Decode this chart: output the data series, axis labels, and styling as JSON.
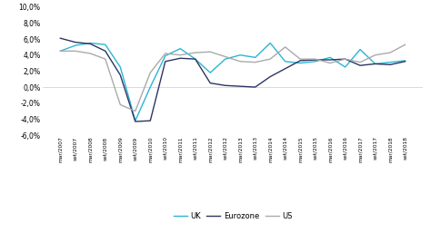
{
  "x_labels": [
    "mar/2007",
    "set/2007",
    "mar/2008",
    "set/2008",
    "mar/2009",
    "set/2009",
    "mar/2010",
    "set/2010",
    "mar/2011",
    "set/2011",
    "mar/2012",
    "set/2012",
    "mar/2013",
    "set/2013",
    "mar/2014",
    "set/2014",
    "mar/2015",
    "set/2015",
    "mar/2016",
    "set/2016",
    "mar/2017",
    "set/2017",
    "mar/2018",
    "set/2018"
  ],
  "uk": [
    4.5,
    5.2,
    5.5,
    5.3,
    2.5,
    -4.2,
    0.0,
    3.9,
    4.8,
    3.5,
    1.8,
    3.5,
    4.0,
    3.7,
    5.5,
    3.2,
    3.0,
    3.2,
    3.7,
    2.5,
    4.7,
    2.9,
    3.1,
    3.3
  ],
  "eurozone": [
    6.1,
    5.6,
    5.4,
    4.5,
    1.5,
    -4.3,
    -4.2,
    3.2,
    3.6,
    3.5,
    0.5,
    0.2,
    0.1,
    0.0,
    1.3,
    2.3,
    3.3,
    3.4,
    3.4,
    3.5,
    2.7,
    2.9,
    2.8,
    3.2
  ],
  "us": [
    4.5,
    4.5,
    4.2,
    3.5,
    -2.2,
    -3.0,
    1.8,
    4.2,
    4.0,
    4.3,
    4.4,
    3.8,
    3.2,
    3.1,
    3.5,
    5.0,
    3.5,
    3.5,
    3.0,
    3.5,
    3.1,
    4.0,
    4.3,
    5.3
  ],
  "uk_color": "#29b6d6",
  "eurozone_color": "#2d3561",
  "us_color": "#aaaaaa",
  "ylim": [
    -6.0,
    10.0
  ],
  "yticks": [
    -6.0,
    -4.0,
    -2.0,
    0.0,
    2.0,
    4.0,
    6.0,
    8.0,
    10.0
  ],
  "background_color": "#ffffff",
  "legend_labels": [
    "UK",
    "Eurozone",
    "US"
  ]
}
